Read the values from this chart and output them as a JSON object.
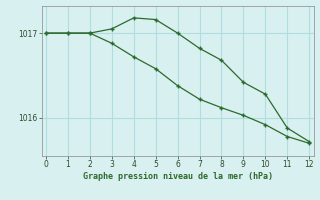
{
  "line1_x": [
    0,
    1,
    2,
    3,
    4,
    5,
    6,
    7,
    8,
    9,
    10,
    11,
    12
  ],
  "line1_y": [
    1017.0,
    1017.0,
    1017.0,
    1017.05,
    1017.18,
    1017.16,
    1017.0,
    1016.82,
    1016.68,
    1016.42,
    1016.28,
    1015.88,
    1015.72
  ],
  "line2_x": [
    0,
    1,
    2,
    3,
    4,
    5,
    6,
    7,
    8,
    9,
    10,
    11,
    12
  ],
  "line2_y": [
    1017.0,
    1017.0,
    1017.0,
    1016.88,
    1016.72,
    1016.58,
    1016.38,
    1016.22,
    1016.12,
    1016.03,
    1015.92,
    1015.78,
    1015.7
  ],
  "line_color": "#2d6a2d",
  "bg_color": "#d8f0f0",
  "grid_color": "#b0dede",
  "xlabel": "Graphe pression niveau de la mer (hPa)",
  "xlabel_color": "#2d6a2d",
  "ytick_labels": [
    "1016",
    "1017"
  ],
  "ytick_vals": [
    1016.0,
    1017.0
  ],
  "xticks": [
    0,
    1,
    2,
    3,
    4,
    5,
    6,
    7,
    8,
    9,
    10,
    11,
    12
  ],
  "ylim": [
    1015.55,
    1017.32
  ],
  "xlim": [
    -0.2,
    12.2
  ]
}
